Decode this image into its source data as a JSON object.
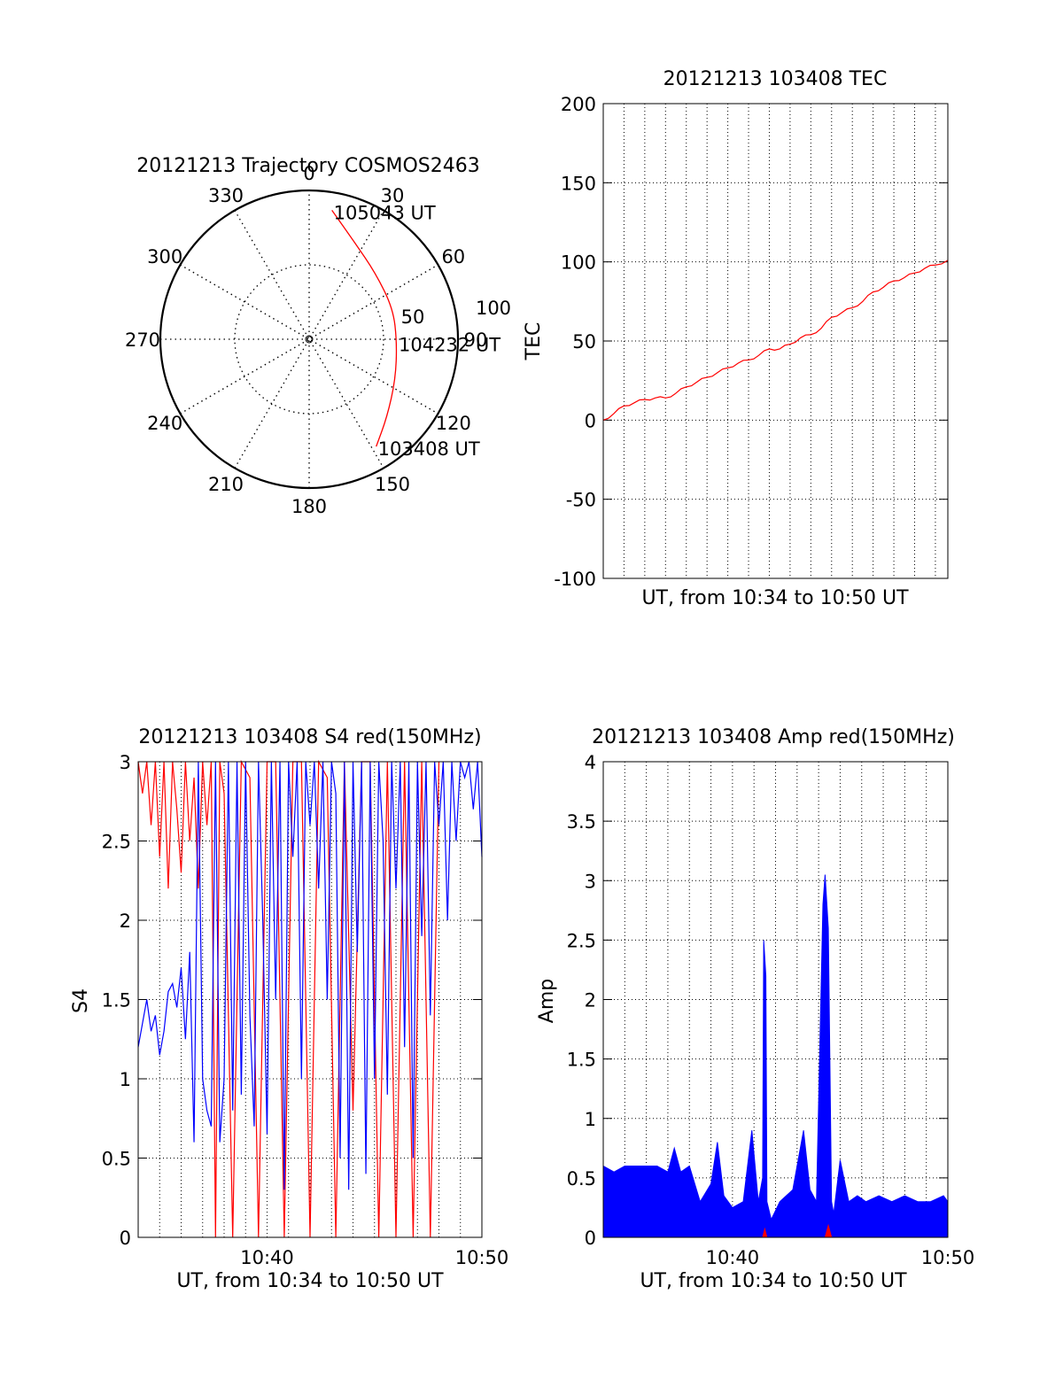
{
  "chart_data": [
    {
      "id": "trajectory",
      "type": "polar",
      "title": "20121213 Trajectory COSMOS2463",
      "angle_labels": [
        "0",
        "30",
        "60",
        "90",
        "120",
        "150",
        "180",
        "210",
        "240",
        "270",
        "300",
        "330"
      ],
      "radius_labels": [
        "50",
        "100"
      ],
      "rmax": 100,
      "grid": "dotted",
      "series": [
        {
          "color": "#ff0000",
          "points": [
            {
              "az": 10,
              "r": 88
            },
            {
              "az": 25,
              "r": 72
            },
            {
              "az": 45,
              "r": 63
            },
            {
              "az": 70,
              "r": 60
            },
            {
              "az": 92,
              "r": 59
            },
            {
              "az": 115,
              "r": 64
            },
            {
              "az": 135,
              "r": 74
            },
            {
              "az": 148,
              "r": 85
            }
          ]
        }
      ],
      "annotations": [
        {
          "text": "105043 UT",
          "az": 10,
          "r": 88
        },
        {
          "text": "104232 UT",
          "az": 92,
          "r": 59
        },
        {
          "text": "103408 UT",
          "az": 148,
          "r": 85
        }
      ]
    },
    {
      "id": "tec",
      "type": "line",
      "title": "20121213 103408 TEC",
      "xlabel": "UT, from 10:34 to 10:50 UT",
      "ylabel": "TEC",
      "ylim": [
        -100,
        200
      ],
      "yticks": [
        "200",
        "150",
        "100",
        "50",
        "0",
        "-50",
        "-100"
      ],
      "xlim_minutes": [
        0,
        16.6
      ],
      "grid": "dotted",
      "series": [
        {
          "color": "#ff0000",
          "x_minutes": [
            0,
            0.5,
            1.0,
            1.5,
            2.0,
            2.5,
            3.0,
            3.5,
            4.0,
            4.5,
            5.0,
            5.5,
            6.0,
            6.5,
            7.0,
            7.5,
            8.0,
            8.5,
            9.0,
            9.5,
            10.0,
            10.5,
            11.0,
            11.5,
            12.0,
            12.5,
            13.0,
            13.5,
            14.0,
            14.5,
            15.0,
            15.5,
            16.0,
            16.6
          ],
          "values": [
            0,
            4,
            9,
            11,
            13,
            14,
            14,
            17,
            21,
            24,
            27,
            30,
            33,
            36,
            38,
            41,
            45,
            45,
            48,
            52,
            54,
            58,
            65,
            68,
            71,
            75,
            81,
            84,
            88,
            90,
            93,
            96,
            98,
            101
          ]
        }
      ]
    },
    {
      "id": "s4",
      "type": "line",
      "title": "20121213 103408 S4 red(150MHz)",
      "xlabel": "UT, from 10:34 to 10:50 UT",
      "ylabel": "S4",
      "ylim": [
        0,
        3
      ],
      "yticks": [
        "3",
        "2.5",
        "2",
        "1.5",
        "1",
        "0.5",
        "0"
      ],
      "xticks": [
        {
          "label": "10:40",
          "minute": 6
        },
        {
          "label": "10:50",
          "minute": 16
        }
      ],
      "xlim_minutes": [
        0,
        16
      ],
      "grid": "dotted",
      "series": [
        {
          "color": "#ff0000",
          "x_minutes": [
            0,
            0.2,
            0.4,
            0.6,
            0.8,
            1.0,
            1.2,
            1.4,
            1.6,
            1.8,
            2.0,
            2.2,
            2.4,
            2.6,
            2.8,
            3.0,
            3.2,
            3.4,
            3.6,
            3.8,
            4.0,
            4.4,
            4.8,
            5.2,
            5.6,
            6.0,
            6.4,
            6.8,
            7.2,
            7.6,
            8.0,
            8.4,
            8.8,
            9.2,
            9.6,
            10.0,
            10.4,
            10.8,
            11.2,
            11.6,
            12.0,
            12.4,
            12.8,
            13.2,
            13.6,
            14.0
          ],
          "values": [
            3,
            2.8,
            3,
            2.6,
            3,
            2.4,
            3,
            2.2,
            3,
            2.7,
            2.3,
            3,
            2.5,
            2.9,
            2.2,
            3,
            2.6,
            3,
            0,
            3,
            2.8,
            0,
            3,
            2.9,
            0,
            3,
            3,
            0,
            3,
            3,
            0,
            3,
            2.9,
            0,
            3,
            0.8,
            3,
            3,
            0,
            3,
            0,
            3,
            0,
            3,
            0,
            3
          ]
        },
        {
          "color": "#0000ff",
          "x_minutes": [
            0,
            0.2,
            0.4,
            0.6,
            0.8,
            1.0,
            1.2,
            1.4,
            1.6,
            1.8,
            2.0,
            2.2,
            2.4,
            2.6,
            2.8,
            3.0,
            3.2,
            3.4,
            3.6,
            3.8,
            4.0,
            4.2,
            4.4,
            4.6,
            4.8,
            5.0,
            5.2,
            5.4,
            5.6,
            5.8,
            6.0,
            6.2,
            6.4,
            6.6,
            6.8,
            7.0,
            7.2,
            7.4,
            7.6,
            7.8,
            8.0,
            8.2,
            8.4,
            8.6,
            8.8,
            9.0,
            9.2,
            9.4,
            9.6,
            9.8,
            10.0,
            10.2,
            10.4,
            10.6,
            10.8,
            11.0,
            11.2,
            11.4,
            11.6,
            11.8,
            12.0,
            12.2,
            12.4,
            12.6,
            12.8,
            13.0,
            13.2,
            13.4,
            13.6,
            13.8,
            14.0,
            14.2,
            14.4,
            14.6,
            14.8,
            15.0,
            15.2,
            15.4,
            15.6,
            15.8,
            16.0
          ],
          "values": [
            1.2,
            1.35,
            1.5,
            1.3,
            1.4,
            1.15,
            1.3,
            1.55,
            1.6,
            1.45,
            1.7,
            1.25,
            1.8,
            0.6,
            3,
            1.0,
            0.8,
            0.7,
            3,
            0.6,
            1.0,
            3,
            0.8,
            3,
            0.9,
            3,
            1.4,
            0.7,
            3,
            2.0,
            0.65,
            3,
            1.5,
            3,
            0.3,
            3,
            2.4,
            3,
            1.0,
            3,
            2.6,
            3,
            2.2,
            3,
            1.5,
            3,
            2.8,
            0.5,
            3,
            0.3,
            3,
            1.8,
            3,
            0.4,
            3,
            1.0,
            3,
            2.5,
            0.9,
            3,
            2.2,
            3,
            1.2,
            3,
            0.5,
            3,
            1.9,
            3,
            1.4,
            3,
            2.6,
            3,
            2.0,
            3,
            2.5,
            3,
            2.9,
            3,
            2.7,
            3,
            2.4
          ]
        }
      ]
    },
    {
      "id": "amp",
      "type": "line",
      "title": "20121213 103408 Amp red(150MHz)",
      "xlabel": "UT, from 10:34 to 10:50 UT",
      "ylabel": "Amp",
      "ylim": [
        0,
        4
      ],
      "yticks": [
        "4",
        "3.5",
        "3",
        "2.5",
        "2",
        "1.5",
        "1",
        "0.5",
        "0"
      ],
      "xticks": [
        {
          "label": "10:40",
          "minute": 6
        },
        {
          "label": "10:50",
          "minute": 16
        }
      ],
      "xlim_minutes": [
        0,
        16
      ],
      "grid": "dotted",
      "series": [
        {
          "color": "#0000ff",
          "x_minutes": [
            0,
            0.5,
            1.0,
            1.5,
            2.0,
            2.5,
            3.0,
            3.3,
            3.6,
            4.0,
            4.5,
            5.0,
            5.3,
            5.6,
            6.0,
            6.5,
            6.9,
            7.2,
            7.4,
            7.45,
            7.55,
            7.6,
            7.8,
            8.2,
            8.8,
            9.3,
            9.6,
            9.9,
            10.2,
            10.3,
            10.45,
            10.6,
            10.7,
            11.0,
            11.4,
            11.8,
            12.2,
            12.8,
            13.4,
            14.0,
            14.6,
            15.2,
            15.8,
            16.0
          ],
          "values": [
            0.6,
            0.55,
            0.6,
            0.6,
            0.6,
            0.6,
            0.55,
            0.75,
            0.55,
            0.6,
            0.3,
            0.45,
            0.8,
            0.35,
            0.25,
            0.3,
            0.9,
            0.3,
            0.5,
            2.5,
            2.2,
            0.3,
            0.15,
            0.3,
            0.4,
            0.9,
            0.4,
            0.3,
            2.8,
            3.05,
            2.6,
            0.3,
            0.2,
            0.65,
            0.3,
            0.35,
            0.3,
            0.35,
            0.3,
            0.35,
            0.3,
            0.3,
            0.35,
            0.3
          ]
        },
        {
          "color": "#ff0000",
          "x_minutes": [
            7.4,
            7.5,
            7.6,
            10.3,
            10.45,
            10.6
          ],
          "values": [
            0,
            0.07,
            0,
            0,
            0.1,
            0
          ]
        }
      ]
    }
  ]
}
